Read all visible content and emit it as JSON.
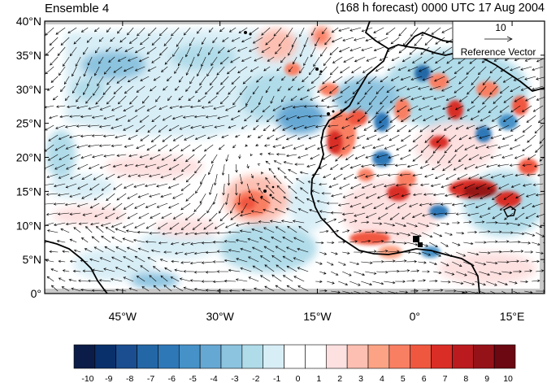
{
  "header": {
    "left_title": "Ensemble 4",
    "right_title": "(168 h forecast) 0000 UTC 17 Aug 2004"
  },
  "map": {
    "lon_range": [
      -57,
      20
    ],
    "lat_range": [
      0,
      40
    ],
    "lat_ticks": [
      {
        "value": 0,
        "label": "0°"
      },
      {
        "value": 5,
        "label": "5°N"
      },
      {
        "value": 10,
        "label": "10°N"
      },
      {
        "value": 15,
        "label": "15°N"
      },
      {
        "value": 20,
        "label": "20°N"
      },
      {
        "value": 25,
        "label": "25°N"
      },
      {
        "value": 30,
        "label": "30°N"
      },
      {
        "value": 35,
        "label": "35°N"
      },
      {
        "value": 40,
        "label": "40°N"
      }
    ],
    "lon_ticks": [
      {
        "value": -45,
        "label": "45°W"
      },
      {
        "value": -30,
        "label": "30°W"
      },
      {
        "value": -15,
        "label": "15°W"
      },
      {
        "value": 0,
        "label": "0°"
      },
      {
        "value": 15,
        "label": "15°E"
      }
    ],
    "reference_vector": {
      "magnitude": "10",
      "label": "Reference Vector"
    }
  },
  "colorbar": {
    "colors": [
      "#0b1c48",
      "#09306b",
      "#1a4e90",
      "#2467a6",
      "#2f78b8",
      "#4692c8",
      "#66a8d4",
      "#8cc3df",
      "#b0dbe9",
      "#d8eef6",
      "#ffffff",
      "#ffffff",
      "#fde0e0",
      "#fcbfb2",
      "#fca385",
      "#f97f63",
      "#f0573f",
      "#d92d26",
      "#bb1b1f",
      "#961219",
      "#6b0812"
    ],
    "labels": [
      "-10",
      "-9",
      "-8",
      "-7",
      "-6",
      "-5",
      "-4",
      "-3",
      "-2",
      "-1",
      "0",
      "1",
      "2",
      "3",
      "4",
      "5",
      "6",
      "7",
      "8",
      "9",
      "10"
    ]
  }
}
